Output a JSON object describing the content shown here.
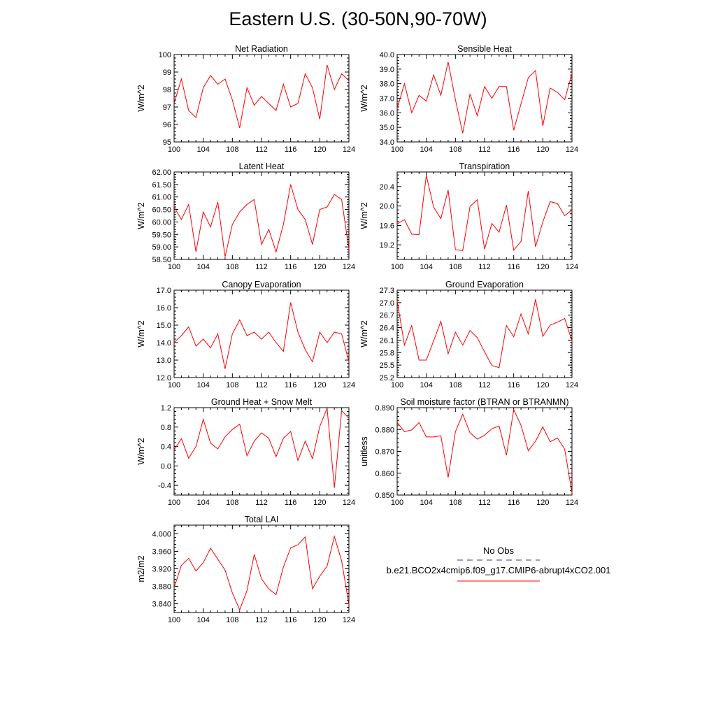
{
  "title": "Eastern U.S. (30-50N,90-70W)",
  "colors": {
    "model_line": "#ff0000",
    "obs_line": "#3a3a8c",
    "axes": "#000000"
  },
  "legend": {
    "obs_label": "No Obs",
    "model_label": "b.e21.BCO2x4cmip6.f09_g17.CMIP6-abrupt4xCO2.001"
  },
  "chart_data": [
    {
      "type": "line",
      "title": "Net Radiation",
      "ylabel": "W/m^2",
      "xlim": [
        100,
        124
      ],
      "ylim": [
        95,
        100
      ],
      "xticks": [
        "100",
        "104",
        "108",
        "112",
        "116",
        "120",
        "124"
      ],
      "yticks": [
        "95",
        "96",
        "97",
        "98",
        "99",
        "100"
      ],
      "x": [
        100,
        101,
        102,
        103,
        104,
        105,
        106,
        107,
        108,
        109,
        110,
        111,
        112,
        113,
        114,
        115,
        116,
        117,
        118,
        119,
        120,
        121,
        122,
        123,
        124
      ],
      "series": [
        {
          "values": [
            97.2,
            98.6,
            96.8,
            96.4,
            98.1,
            98.8,
            98.3,
            98.6,
            97.4,
            95.8,
            98.1,
            97.1,
            97.6,
            97.2,
            96.8,
            98.3,
            97.0,
            97.2,
            98.9,
            98.1,
            96.3,
            99.4,
            98.0,
            98.9,
            98.5
          ]
        }
      ]
    },
    {
      "type": "line",
      "title": "Sensible Heat",
      "ylabel": "W/m^2",
      "xlim": [
        100,
        124
      ],
      "ylim": [
        34.0,
        40.0
      ],
      "xticks": [
        "100",
        "104",
        "108",
        "112",
        "116",
        "120",
        "124"
      ],
      "yticks": [
        "34.0",
        "35.0",
        "36.0",
        "37.0",
        "38.0",
        "39.0",
        "40.0"
      ],
      "x": [
        100,
        101,
        102,
        103,
        104,
        105,
        106,
        107,
        108,
        109,
        110,
        111,
        112,
        113,
        114,
        115,
        116,
        117,
        118,
        119,
        120,
        121,
        122,
        123,
        124
      ],
      "series": [
        {
          "values": [
            36.3,
            38.0,
            36.0,
            37.2,
            36.8,
            38.6,
            37.2,
            39.5,
            36.9,
            34.6,
            37.3,
            35.8,
            37.8,
            37.0,
            37.8,
            37.8,
            34.8,
            36.6,
            38.4,
            38.9,
            35.1,
            37.7,
            37.4,
            36.9,
            38.7
          ]
        }
      ]
    },
    {
      "type": "line",
      "title": "Latent Heat",
      "ylabel": "W/m^2",
      "xlim": [
        100,
        124
      ],
      "ylim": [
        58.5,
        62.0
      ],
      "xticks": [
        "100",
        "104",
        "108",
        "112",
        "116",
        "120",
        "124"
      ],
      "yticks": [
        "58.50",
        "59.00",
        "59.50",
        "60.00",
        "60.50",
        "61.00",
        "61.50",
        "62.00"
      ],
      "x": [
        100,
        101,
        102,
        103,
        104,
        105,
        106,
        107,
        108,
        109,
        110,
        111,
        112,
        113,
        114,
        115,
        116,
        117,
        118,
        119,
        120,
        121,
        122,
        123,
        124
      ],
      "series": [
        {
          "values": [
            60.6,
            60.1,
            60.7,
            58.8,
            60.4,
            59.8,
            60.8,
            58.6,
            59.9,
            60.4,
            60.7,
            60.9,
            59.1,
            59.7,
            58.8,
            59.9,
            61.5,
            60.5,
            60.1,
            59.1,
            60.5,
            60.6,
            61.1,
            60.9,
            58.9
          ]
        }
      ]
    },
    {
      "type": "line",
      "title": "Transpiration",
      "ylabel": "W/m^2",
      "xlim": [
        100,
        124
      ],
      "ylim": [
        18.9,
        20.7
      ],
      "xticks": [
        "100",
        "104",
        "108",
        "112",
        "116",
        "120",
        "124"
      ],
      "yticks": [
        "19.2",
        "19.6",
        "20.0",
        "20.4"
      ],
      "x": [
        100,
        101,
        102,
        103,
        104,
        105,
        106,
        107,
        108,
        109,
        110,
        111,
        112,
        113,
        114,
        115,
        116,
        117,
        118,
        119,
        120,
        121,
        122,
        123,
        124
      ],
      "series": [
        {
          "values": [
            19.63,
            19.72,
            19.42,
            19.41,
            20.63,
            19.98,
            19.74,
            20.33,
            19.1,
            19.08,
            19.99,
            20.13,
            19.11,
            19.64,
            19.46,
            20.02,
            19.09,
            19.27,
            20.31,
            19.16,
            19.67,
            20.09,
            20.05,
            19.8,
            19.92
          ]
        }
      ]
    },
    {
      "type": "line",
      "title": "Canopy Evaporation",
      "ylabel": "W/m^2",
      "xlim": [
        100,
        124
      ],
      "ylim": [
        12.0,
        17.0
      ],
      "xticks": [
        "100",
        "104",
        "108",
        "112",
        "116",
        "120",
        "124"
      ],
      "yticks": [
        "12.0",
        "13.0",
        "14.0",
        "15.0",
        "16.0",
        "17.0"
      ],
      "x": [
        100,
        101,
        102,
        103,
        104,
        105,
        106,
        107,
        108,
        109,
        110,
        111,
        112,
        113,
        114,
        115,
        116,
        117,
        118,
        119,
        120,
        121,
        122,
        123,
        124
      ],
      "series": [
        {
          "values": [
            14.0,
            14.4,
            14.9,
            13.8,
            14.2,
            13.7,
            14.5,
            12.5,
            14.5,
            15.3,
            14.4,
            14.6,
            14.2,
            14.6,
            14.0,
            13.5,
            16.3,
            14.6,
            13.6,
            12.9,
            14.6,
            14.0,
            14.6,
            14.5,
            12.9
          ]
        }
      ]
    },
    {
      "type": "line",
      "title": "Ground Evaporation",
      "ylabel": "W/m^2",
      "xlim": [
        100,
        124
      ],
      "ylim": [
        25.2,
        27.3
      ],
      "xticks": [
        "100",
        "104",
        "108",
        "112",
        "116",
        "120",
        "124"
      ],
      "yticks": [
        "25.2",
        "25.5",
        "25.8",
        "26.1",
        "26.4",
        "26.7",
        "27.0",
        "27.3"
      ],
      "x": [
        100,
        101,
        102,
        103,
        104,
        105,
        106,
        107,
        108,
        109,
        110,
        111,
        112,
        113,
        114,
        115,
        116,
        117,
        118,
        119,
        120,
        121,
        122,
        123,
        124
      ],
      "series": [
        {
          "values": [
            27.05,
            25.98,
            26.45,
            25.62,
            25.62,
            26.08,
            26.55,
            25.77,
            26.29,
            25.98,
            26.33,
            26.16,
            25.82,
            25.49,
            25.44,
            26.45,
            26.18,
            26.73,
            26.25,
            27.08,
            26.19,
            26.46,
            26.53,
            26.62,
            26.08
          ]
        }
      ]
    },
    {
      "type": "line",
      "title": "Ground Heat + Snow Melt",
      "ylabel": "W/m^2",
      "xlim": [
        100,
        124
      ],
      "ylim": [
        -0.6,
        1.2
      ],
      "xticks": [
        "100",
        "104",
        "108",
        "112",
        "116",
        "120",
        "124"
      ],
      "yticks": [
        "-0.4",
        "0.0",
        "0.4",
        "0.8",
        "1.2"
      ],
      "x": [
        100,
        101,
        102,
        103,
        104,
        105,
        106,
        107,
        108,
        109,
        110,
        111,
        112,
        113,
        114,
        115,
        116,
        117,
        118,
        119,
        120,
        121,
        122,
        123,
        124
      ],
      "series": [
        {
          "values": [
            0.33,
            0.56,
            0.16,
            0.4,
            0.96,
            0.47,
            0.35,
            0.6,
            0.75,
            0.86,
            0.21,
            0.51,
            0.68,
            0.57,
            0.19,
            0.57,
            0.71,
            0.11,
            0.51,
            0.15,
            0.81,
            1.19,
            -0.45,
            1.14,
            0.98
          ]
        }
      ]
    },
    {
      "type": "line",
      "title": "Soil moisture factor (BTRAN or BTRANMN)",
      "ylabel": "unitless",
      "xlim": [
        100,
        124
      ],
      "ylim": [
        0.85,
        0.89
      ],
      "xticks": [
        "100",
        "104",
        "108",
        "112",
        "116",
        "120",
        "124"
      ],
      "yticks": [
        "0.850",
        "0.860",
        "0.870",
        "0.880",
        "0.890"
      ],
      "x": [
        100,
        101,
        102,
        103,
        104,
        105,
        106,
        107,
        108,
        109,
        110,
        111,
        112,
        113,
        114,
        115,
        116,
        117,
        118,
        119,
        120,
        121,
        122,
        123,
        124
      ],
      "series": [
        {
          "values": [
            0.8833,
            0.879,
            0.8798,
            0.8832,
            0.8766,
            0.8766,
            0.8771,
            0.858,
            0.879,
            0.887,
            0.8785,
            0.8756,
            0.8774,
            0.8803,
            0.8816,
            0.8682,
            0.8891,
            0.882,
            0.8703,
            0.8746,
            0.8812,
            0.8744,
            0.8761,
            0.871,
            0.851
          ]
        }
      ]
    },
    {
      "type": "line",
      "title": "Total LAI",
      "ylabel": "m2/m2",
      "xlim": [
        100,
        124
      ],
      "ylim": [
        3.82,
        4.02
      ],
      "xticks": [
        "100",
        "104",
        "108",
        "112",
        "116",
        "120",
        "124"
      ],
      "yticks": [
        "3.840",
        "3.880",
        "3.920",
        "3.960",
        "4.000"
      ],
      "x": [
        100,
        101,
        102,
        103,
        104,
        105,
        106,
        107,
        108,
        109,
        110,
        111,
        112,
        113,
        114,
        115,
        116,
        117,
        118,
        119,
        120,
        121,
        122,
        123,
        124
      ],
      "series": [
        {
          "values": [
            3.877,
            3.928,
            3.944,
            3.915,
            3.934,
            3.967,
            3.942,
            3.917,
            3.865,
            3.826,
            3.87,
            3.953,
            3.897,
            3.874,
            3.861,
            3.924,
            3.968,
            3.975,
            3.993,
            3.874,
            3.903,
            3.926,
            3.994,
            3.938,
            3.838
          ]
        }
      ]
    }
  ]
}
